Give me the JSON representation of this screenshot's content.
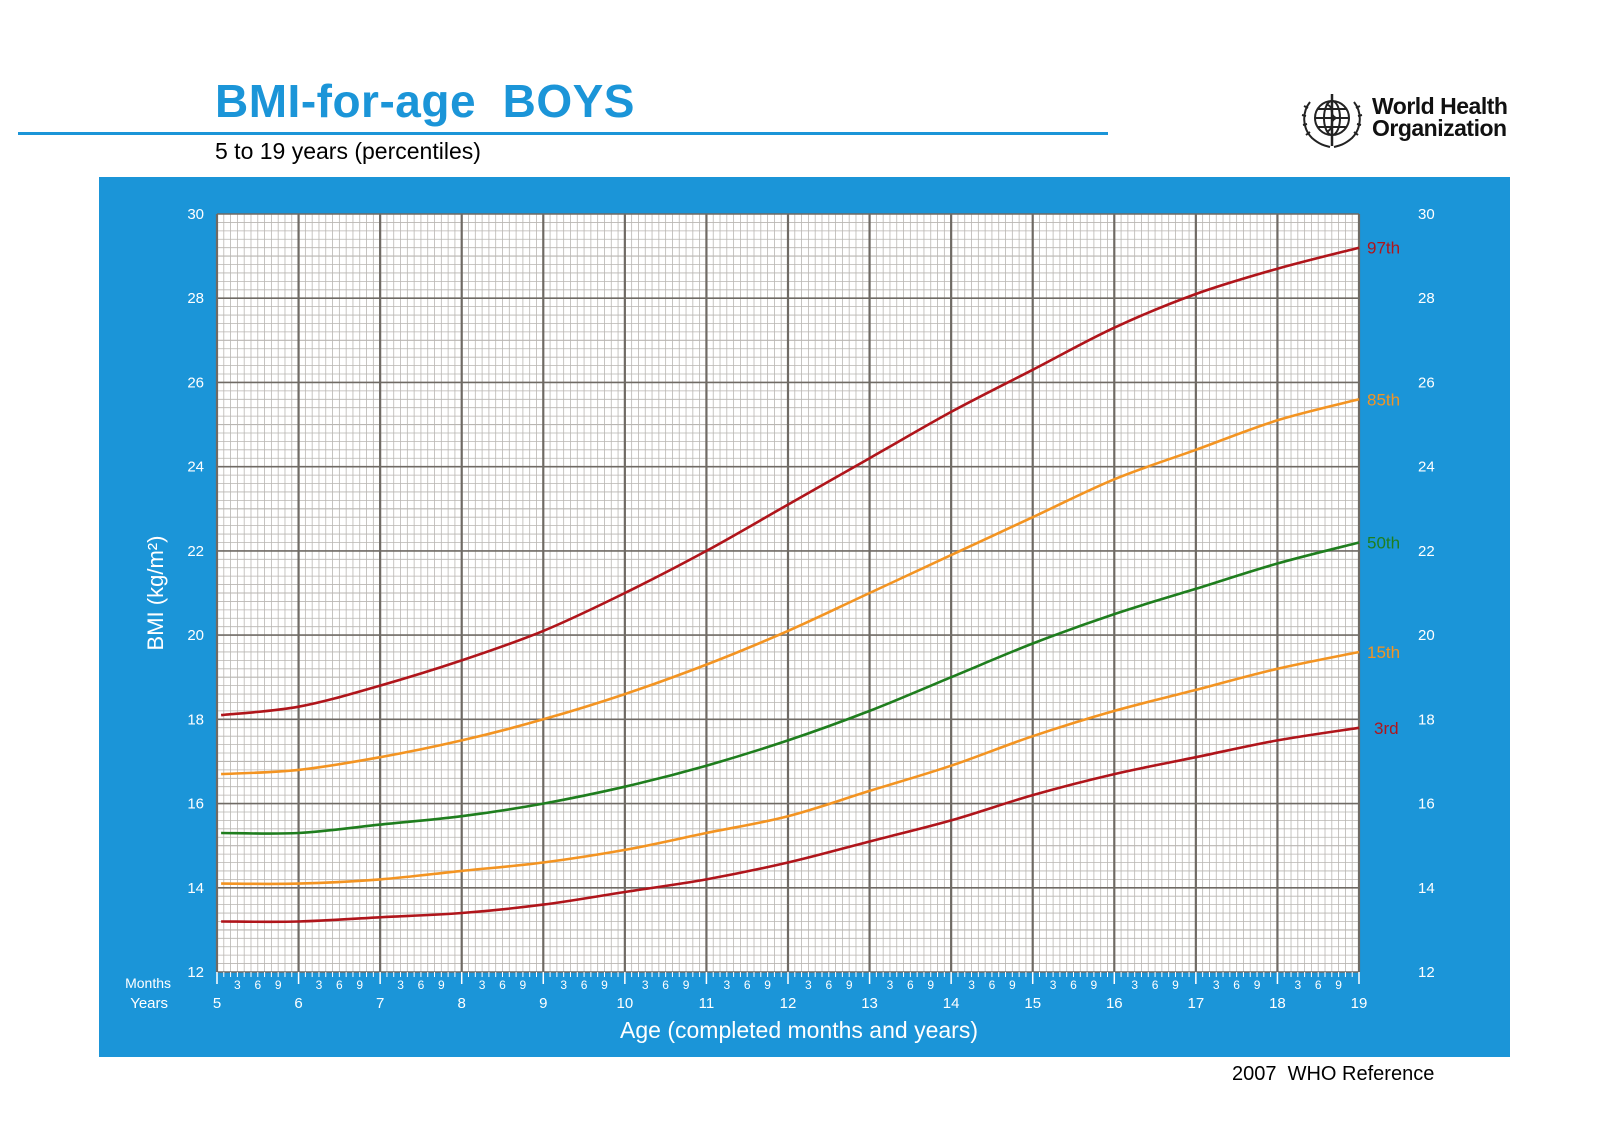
{
  "header": {
    "title": "BMI-for-age  BOYS",
    "subtitle": "5 to 19 years (percentiles)",
    "org_line1": "World Health",
    "org_line2": "Organization"
  },
  "footer": {
    "reference": "2007  WHO Reference"
  },
  "colors": {
    "panel": "#1b95d8",
    "p97": "#b0151b",
    "p85": "#f39422",
    "p50": "#1f7e1e",
    "p15": "#f39422",
    "p3": "#b0151b",
    "grid_major": "#6f6a64",
    "grid_minor": "#b9b6b2"
  },
  "chart_data": {
    "type": "line",
    "title": "BMI-for-age  BOYS",
    "subtitle": "5 to 19 years (percentiles)",
    "xlabel": "Age (completed months and years)",
    "ylabel": "BMI (kg/m²)",
    "xlim": [
      5,
      19
    ],
    "ylim": [
      12,
      30
    ],
    "grid": true,
    "x_axis_row_labels": {
      "months": "Months",
      "years": "Years"
    },
    "month_tick_labels": [
      "3",
      "6",
      "9"
    ],
    "x_ticks": [
      5,
      6,
      7,
      8,
      9,
      10,
      11,
      12,
      13,
      14,
      15,
      16,
      17,
      18,
      19
    ],
    "y_ticks": [
      12,
      14,
      16,
      18,
      20,
      22,
      24,
      26,
      28,
      30
    ],
    "x": [
      5,
      6,
      7,
      8,
      9,
      10,
      11,
      12,
      13,
      14,
      15,
      16,
      17,
      18,
      19
    ],
    "series": [
      {
        "name": "97th",
        "color_key": "p97",
        "values": [
          18.1,
          18.3,
          18.8,
          19.4,
          20.1,
          21.0,
          22.0,
          23.1,
          24.2,
          25.3,
          26.3,
          27.3,
          28.1,
          28.7,
          29.2
        ]
      },
      {
        "name": "85th",
        "color_key": "p85",
        "values": [
          16.7,
          16.8,
          17.1,
          17.5,
          18.0,
          18.6,
          19.3,
          20.1,
          21.0,
          21.9,
          22.8,
          23.7,
          24.4,
          25.1,
          25.6
        ]
      },
      {
        "name": "50th",
        "color_key": "p50",
        "values": [
          15.3,
          15.3,
          15.5,
          15.7,
          16.0,
          16.4,
          16.9,
          17.5,
          18.2,
          19.0,
          19.8,
          20.5,
          21.1,
          21.7,
          22.2
        ]
      },
      {
        "name": "15th",
        "color_key": "p15",
        "values": [
          14.1,
          14.1,
          14.2,
          14.4,
          14.6,
          14.9,
          15.3,
          15.7,
          16.3,
          16.9,
          17.6,
          18.2,
          18.7,
          19.2,
          19.6
        ]
      },
      {
        "name": "3rd",
        "color_key": "p3",
        "values": [
          13.2,
          13.2,
          13.3,
          13.4,
          13.6,
          13.9,
          14.2,
          14.6,
          15.1,
          15.6,
          16.2,
          16.7,
          17.1,
          17.5,
          17.8
        ]
      }
    ]
  }
}
